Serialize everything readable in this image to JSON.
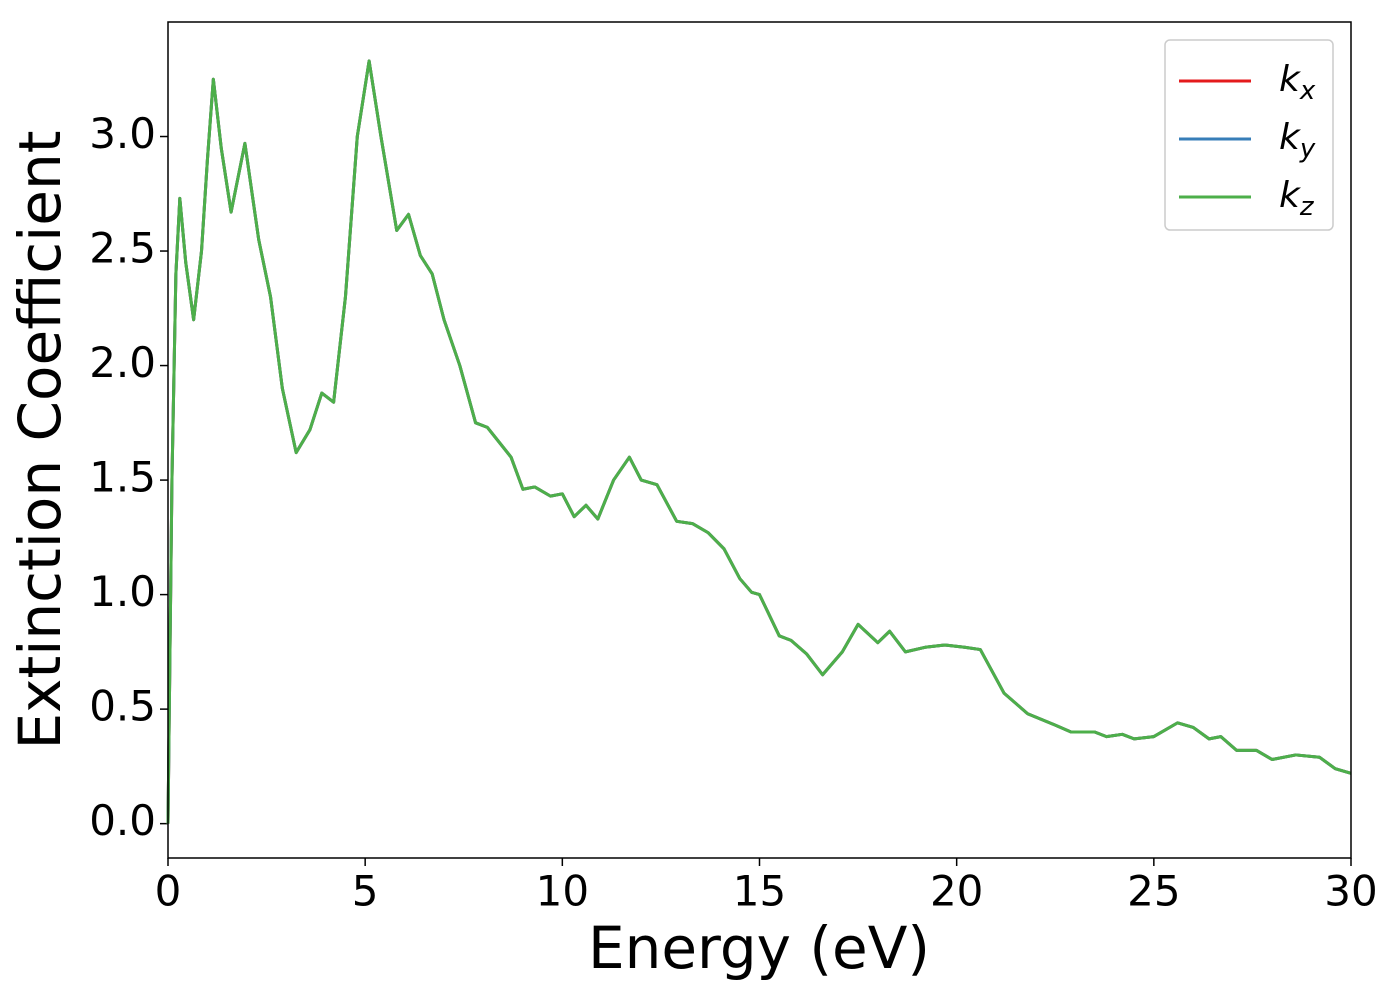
{
  "chart_data": {
    "type": "line",
    "x_label": "Energy (eV)",
    "y_label": "Extinction Coefficient",
    "x": [
      0,
      0.1,
      0.2,
      0.3,
      0.45,
      0.65,
      0.85,
      1.0,
      1.15,
      1.35,
      1.6,
      1.95,
      2.3,
      2.6,
      2.9,
      3.25,
      3.6,
      3.9,
      4.2,
      4.5,
      4.8,
      5.1,
      5.4,
      5.8,
      6.1,
      6.4,
      6.7,
      7.0,
      7.4,
      7.8,
      8.1,
      8.7,
      9.0,
      9.3,
      9.7,
      10.0,
      10.3,
      10.6,
      10.9,
      11.3,
      11.7,
      12.0,
      12.4,
      12.9,
      13.3,
      13.7,
      14.1,
      14.5,
      14.8,
      15.0,
      15.5,
      15.8,
      16.2,
      16.6,
      17.1,
      17.5,
      18.0,
      18.3,
      18.7,
      19.2,
      19.7,
      20.2,
      20.6,
      21.2,
      21.8,
      22.5,
      22.9,
      23.5,
      23.8,
      24.2,
      24.5,
      25.0,
      25.6,
      26.0,
      26.4,
      26.7,
      27.1,
      27.6,
      28.0,
      28.6,
      29.2,
      29.6,
      30.0
    ],
    "series": [
      {
        "name": "kx",
        "color": "#e41a1c",
        "values": [
          0,
          1.5,
          2.4,
          2.73,
          2.45,
          2.2,
          2.5,
          2.9,
          3.25,
          2.95,
          2.67,
          2.97,
          2.55,
          2.3,
          1.9,
          1.62,
          1.72,
          1.88,
          1.84,
          2.3,
          3.0,
          3.33,
          3.0,
          2.59,
          2.66,
          2.48,
          2.4,
          2.2,
          2.0,
          1.75,
          1.73,
          1.6,
          1.46,
          1.47,
          1.43,
          1.44,
          1.34,
          1.39,
          1.33,
          1.5,
          1.6,
          1.5,
          1.48,
          1.32,
          1.31,
          1.27,
          1.2,
          1.07,
          1.01,
          1.0,
          0.82,
          0.8,
          0.74,
          0.65,
          0.75,
          0.87,
          0.79,
          0.84,
          0.75,
          0.77,
          0.78,
          0.77,
          0.76,
          0.57,
          0.48,
          0.43,
          0.4,
          0.4,
          0.38,
          0.39,
          0.37,
          0.38,
          0.44,
          0.42,
          0.37,
          0.38,
          0.32,
          0.32,
          0.28,
          0.3,
          0.29,
          0.24,
          0.22
        ]
      },
      {
        "name": "ky",
        "color": "#377eb8",
        "values": [
          0,
          1.5,
          2.4,
          2.73,
          2.45,
          2.2,
          2.5,
          2.9,
          3.25,
          2.95,
          2.67,
          2.97,
          2.55,
          2.3,
          1.9,
          1.62,
          1.72,
          1.88,
          1.84,
          2.3,
          3.0,
          3.33,
          3.0,
          2.59,
          2.66,
          2.48,
          2.4,
          2.2,
          2.0,
          1.75,
          1.73,
          1.6,
          1.46,
          1.47,
          1.43,
          1.44,
          1.34,
          1.39,
          1.33,
          1.5,
          1.6,
          1.5,
          1.48,
          1.32,
          1.31,
          1.27,
          1.2,
          1.07,
          1.01,
          1.0,
          0.82,
          0.8,
          0.74,
          0.65,
          0.75,
          0.87,
          0.79,
          0.84,
          0.75,
          0.77,
          0.78,
          0.77,
          0.76,
          0.57,
          0.48,
          0.43,
          0.4,
          0.4,
          0.38,
          0.39,
          0.37,
          0.38,
          0.44,
          0.42,
          0.37,
          0.38,
          0.32,
          0.32,
          0.28,
          0.3,
          0.29,
          0.24,
          0.22
        ]
      },
      {
        "name": "kz",
        "color": "#4daf4a",
        "values": [
          0,
          1.5,
          2.4,
          2.73,
          2.45,
          2.2,
          2.5,
          2.9,
          3.25,
          2.95,
          2.67,
          2.97,
          2.55,
          2.3,
          1.9,
          1.62,
          1.72,
          1.88,
          1.84,
          2.3,
          3.0,
          3.33,
          3.0,
          2.59,
          2.66,
          2.48,
          2.4,
          2.2,
          2.0,
          1.75,
          1.73,
          1.6,
          1.46,
          1.47,
          1.43,
          1.44,
          1.34,
          1.39,
          1.33,
          1.5,
          1.6,
          1.5,
          1.48,
          1.32,
          1.31,
          1.27,
          1.2,
          1.07,
          1.01,
          1.0,
          0.82,
          0.8,
          0.74,
          0.65,
          0.75,
          0.87,
          0.79,
          0.84,
          0.75,
          0.77,
          0.78,
          0.77,
          0.76,
          0.57,
          0.48,
          0.43,
          0.4,
          0.4,
          0.38,
          0.39,
          0.37,
          0.38,
          0.44,
          0.42,
          0.37,
          0.38,
          0.32,
          0.32,
          0.28,
          0.3,
          0.29,
          0.24,
          0.22
        ]
      }
    ],
    "xlim": [
      0,
      30
    ],
    "xticks": [
      0,
      5,
      10,
      15,
      20,
      25,
      30
    ],
    "ylim": [
      -0.15,
      3.5
    ],
    "yticks": [
      {
        "value": 0,
        "label": "0.0"
      },
      0.5,
      {
        "value": 1,
        "label": "1.0"
      },
      1.5,
      {
        "value": 2,
        "label": "2.0"
      },
      2.5,
      {
        "value": 3,
        "label": "3.0"
      }
    ],
    "legend": "upper right",
    "grid": false
  }
}
